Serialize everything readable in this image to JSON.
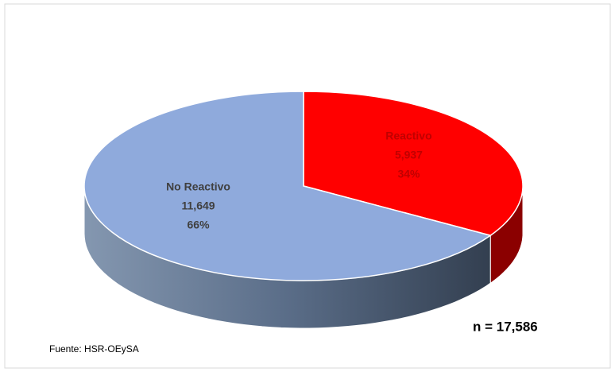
{
  "chart_data": {
    "type": "pie3d",
    "categories": [
      "Reactivo",
      "No Reactivo"
    ],
    "values": [
      5937,
      11649
    ],
    "value_labels": [
      "5,937",
      "11,649"
    ],
    "percents": [
      34,
      66
    ],
    "percent_labels": [
      "34%",
      "66%"
    ],
    "colors": [
      "#ff0000",
      "#8faadc"
    ],
    "side_colors": [
      "#8b0000",
      "#44546a"
    ],
    "label_colors": [
      "#c00000",
      "#404040"
    ],
    "annotation": "n = 17,586",
    "source": "Fuente: HSR-OEySA"
  }
}
